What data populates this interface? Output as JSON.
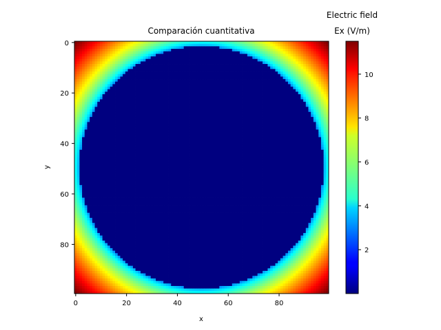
{
  "chart_data": {
    "type": "heatmap",
    "title": "Comparación cuantitativa",
    "xlabel": "x",
    "ylabel": "y",
    "xlim": [
      0,
      99
    ],
    "ylim": [
      99,
      0
    ],
    "y_axis_inverted": true,
    "grid": false,
    "colormap": "jet",
    "x_ticks": [
      0,
      20,
      40,
      60,
      80
    ],
    "y_ticks": [
      0,
      20,
      40,
      60,
      80
    ],
    "grid_size": [
      100,
      100
    ],
    "field": {
      "description": "Ex magnitude; zero inside a centered disk, rising toward the four corners",
      "disk_center": [
        49.5,
        49.5
      ],
      "disk_radius": 48,
      "value_inside_disk": 0.0,
      "value_at_disk_edge": 3.0,
      "value_at_corners": 11.5
    },
    "colorbar": {
      "label_line1": "Electric field",
      "label_line2": "Ex (V/m)",
      "range": [
        0.0,
        11.5
      ],
      "ticks": [
        2,
        4,
        6,
        8,
        10
      ]
    }
  }
}
